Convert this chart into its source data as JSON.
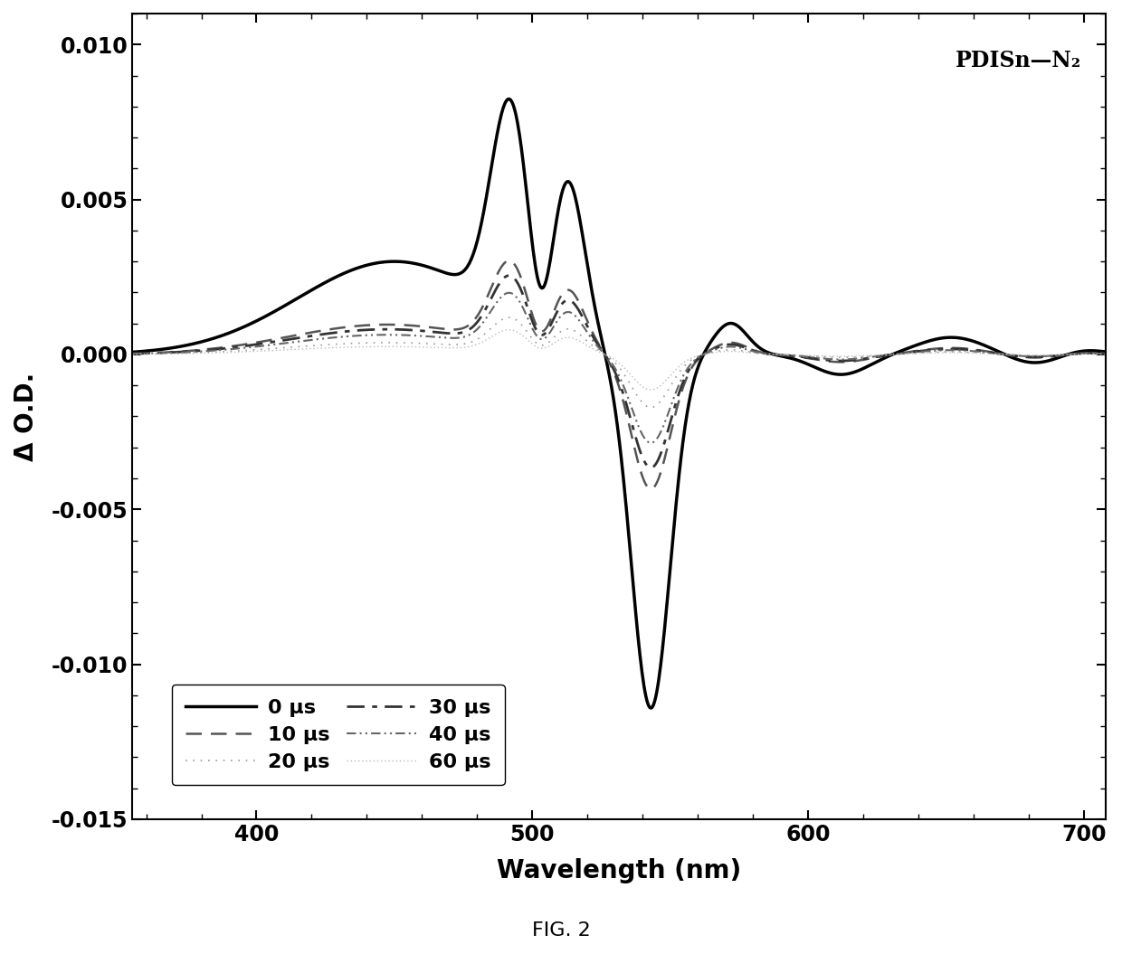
{
  "title": "PDISn—N₂",
  "xlabel": "Wavelength (nm)",
  "ylabel": "Δ O.D.",
  "fig_caption": "FIG. 2",
  "xlim": [
    355,
    708
  ],
  "ylim": [
    -0.015,
    0.011
  ],
  "yticks": [
    -0.015,
    -0.01,
    -0.005,
    0.0,
    0.005,
    0.01
  ],
  "xticks": [
    400,
    500,
    600,
    700
  ],
  "background_color": "#ffffff",
  "series": [
    {
      "label": "0 μs",
      "color": "#000000",
      "linewidth": 2.5,
      "style_code": "solid"
    },
    {
      "label": "10 μs",
      "color": "#555555",
      "linewidth": 1.8,
      "style_code": "dashed_coarse"
    },
    {
      "label": "20 μs",
      "color": "#999999",
      "linewidth": 1.2,
      "style_code": "dotted_sparse"
    },
    {
      "label": "30 μs",
      "color": "#333333",
      "linewidth": 2.0,
      "style_code": "dashdot"
    },
    {
      "label": "40 μs",
      "color": "#666666",
      "linewidth": 1.5,
      "style_code": "dashed_dot_dot"
    },
    {
      "label": "60 μs",
      "color": "#bbbbbb",
      "linewidth": 1.0,
      "style_code": "dotted_dense"
    }
  ]
}
